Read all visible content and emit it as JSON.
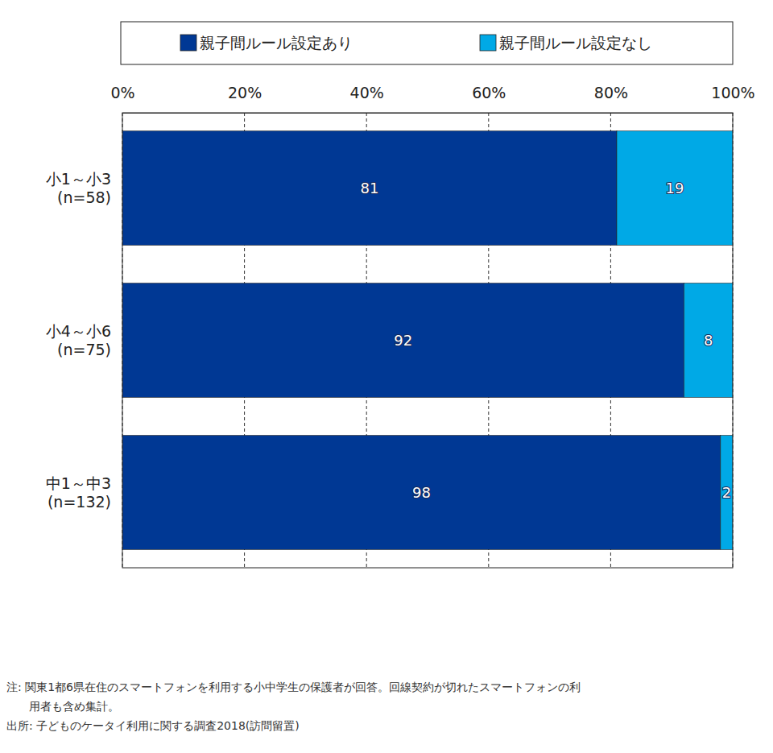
{
  "chart_data": {
    "type": "bar",
    "orientation": "horizontal",
    "stacked": true,
    "data_labels": true,
    "grid": true,
    "legend": "top",
    "categories": [
      "小1～小3\n(n=58)",
      "小4～小6\n(n=75)",
      "中1～中3\n(n=132)"
    ],
    "series": [
      {
        "name": "親子間ルール設定あり",
        "color": "#003894",
        "values": [
          81,
          92,
          98
        ]
      },
      {
        "name": "親子間ルール設定なし",
        "color": "#00a9e6",
        "values": [
          19,
          8,
          2
        ]
      }
    ],
    "xlim": [
      0,
      100
    ],
    "xticks": [
      {
        "value": 0,
        "label": "0%"
      },
      {
        "value": 20,
        "label": "20%"
      },
      {
        "value": 40,
        "label": "40%"
      },
      {
        "value": 60,
        "label": "60%"
      },
      {
        "value": 80,
        "label": "80%"
      },
      {
        "value": 100,
        "label": "100%"
      }
    ],
    "annotations": [
      "注: 関東1都6県在住のスマートフォンを利用する小中学生の保護者が回答。回線契約が切れたスマートフォンの利\n用者も含め集計。",
      "出所: 子どものケータイ利用に関する調査2018(訪問留置)"
    ]
  }
}
